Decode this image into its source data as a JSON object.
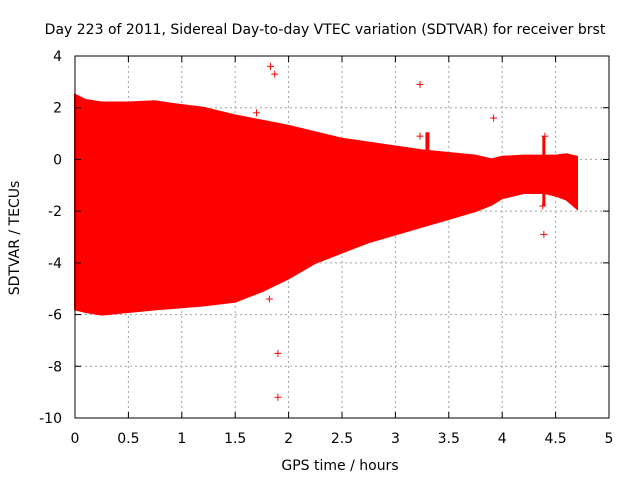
{
  "chart_data": {
    "type": "scatter",
    "title": "Day 223 of 2011, Sidereal Day-to-day VTEC variation (SDTVAR) for receiver brst",
    "xlabel": "GPS time / hours",
    "ylabel": "SDTVAR / TECUs",
    "xlim": [
      0,
      5
    ],
    "ylim": [
      -10,
      4
    ],
    "xticks": [
      0,
      0.5,
      1,
      1.5,
      2,
      2.5,
      3,
      3.5,
      4,
      4.5,
      5
    ],
    "xtick_labels": [
      "0",
      "0.5",
      "1",
      "1.5",
      "2",
      "2.5",
      "3",
      "3.5",
      "4",
      "4.5",
      "5"
    ],
    "yticks": [
      4,
      2,
      0,
      -2,
      -4,
      -6,
      -8,
      -10
    ],
    "ytick_labels": [
      "4",
      "2",
      "0",
      "-2",
      "-4",
      "-6",
      "-8",
      "-10"
    ],
    "grid": true,
    "color": "#ff0000",
    "marker": "+",
    "dense_band": {
      "description": "dense cloud of + markers",
      "x": [
        0.0,
        0.1,
        0.25,
        0.5,
        0.75,
        0.9,
        1.2,
        1.5,
        1.75,
        2.0,
        2.25,
        2.5,
        2.75,
        3.0,
        3.25,
        3.5,
        3.75,
        3.9,
        4.0,
        4.2,
        4.4,
        4.5,
        4.6,
        4.7
      ],
      "upper": [
        2.5,
        2.3,
        2.2,
        2.2,
        2.25,
        2.15,
        2.0,
        1.7,
        1.5,
        1.3,
        1.05,
        0.8,
        0.65,
        0.5,
        0.35,
        0.25,
        0.15,
        0.0,
        0.1,
        0.15,
        0.15,
        0.15,
        0.2,
        0.1
      ],
      "lower": [
        -5.8,
        -5.9,
        -6.0,
        -5.9,
        -5.8,
        -5.75,
        -5.65,
        -5.5,
        -5.1,
        -4.6,
        -4.0,
        -3.6,
        -3.2,
        -2.9,
        -2.6,
        -2.3,
        -2.0,
        -1.75,
        -1.5,
        -1.3,
        -1.3,
        -1.4,
        -1.55,
        -1.9
      ]
    },
    "outliers": {
      "x": [
        1.83,
        1.87,
        1.7,
        1.82,
        1.9,
        1.9,
        3.23,
        3.23,
        3.92,
        4.38,
        4.39,
        4.4
      ],
      "y": [
        3.6,
        3.3,
        1.8,
        -5.4,
        -7.5,
        -9.2,
        2.9,
        0.9,
        1.6,
        -1.8,
        -2.9,
        0.9
      ]
    }
  }
}
